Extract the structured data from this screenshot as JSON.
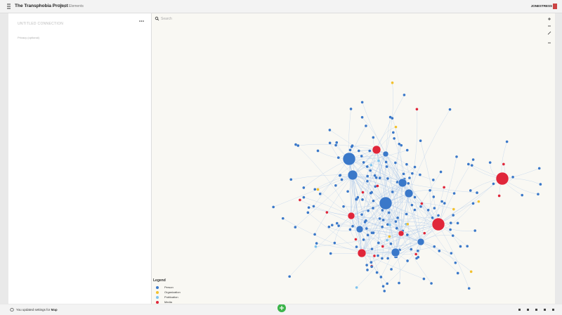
{
  "header": {
    "title": "The Transphobia Project",
    "menus": [
      "Map",
      "Elements"
    ],
    "user": "JONESTRESS"
  },
  "sidebar": {
    "title": "Untitled connection",
    "field": "Privacy (optional)"
  },
  "search": {
    "placeholder": "Search"
  },
  "legend": {
    "title": "Legend",
    "items": [
      {
        "label": "Person",
        "color": "#3a78c9"
      },
      {
        "label": "Organization",
        "color": "#f2c12e"
      },
      {
        "label": "Publication",
        "color": "#7ec3ef"
      },
      {
        "label": "Media",
        "color": "#e0263a"
      }
    ]
  },
  "status": {
    "message": "You updated settings for",
    "target": "Map"
  }
}
